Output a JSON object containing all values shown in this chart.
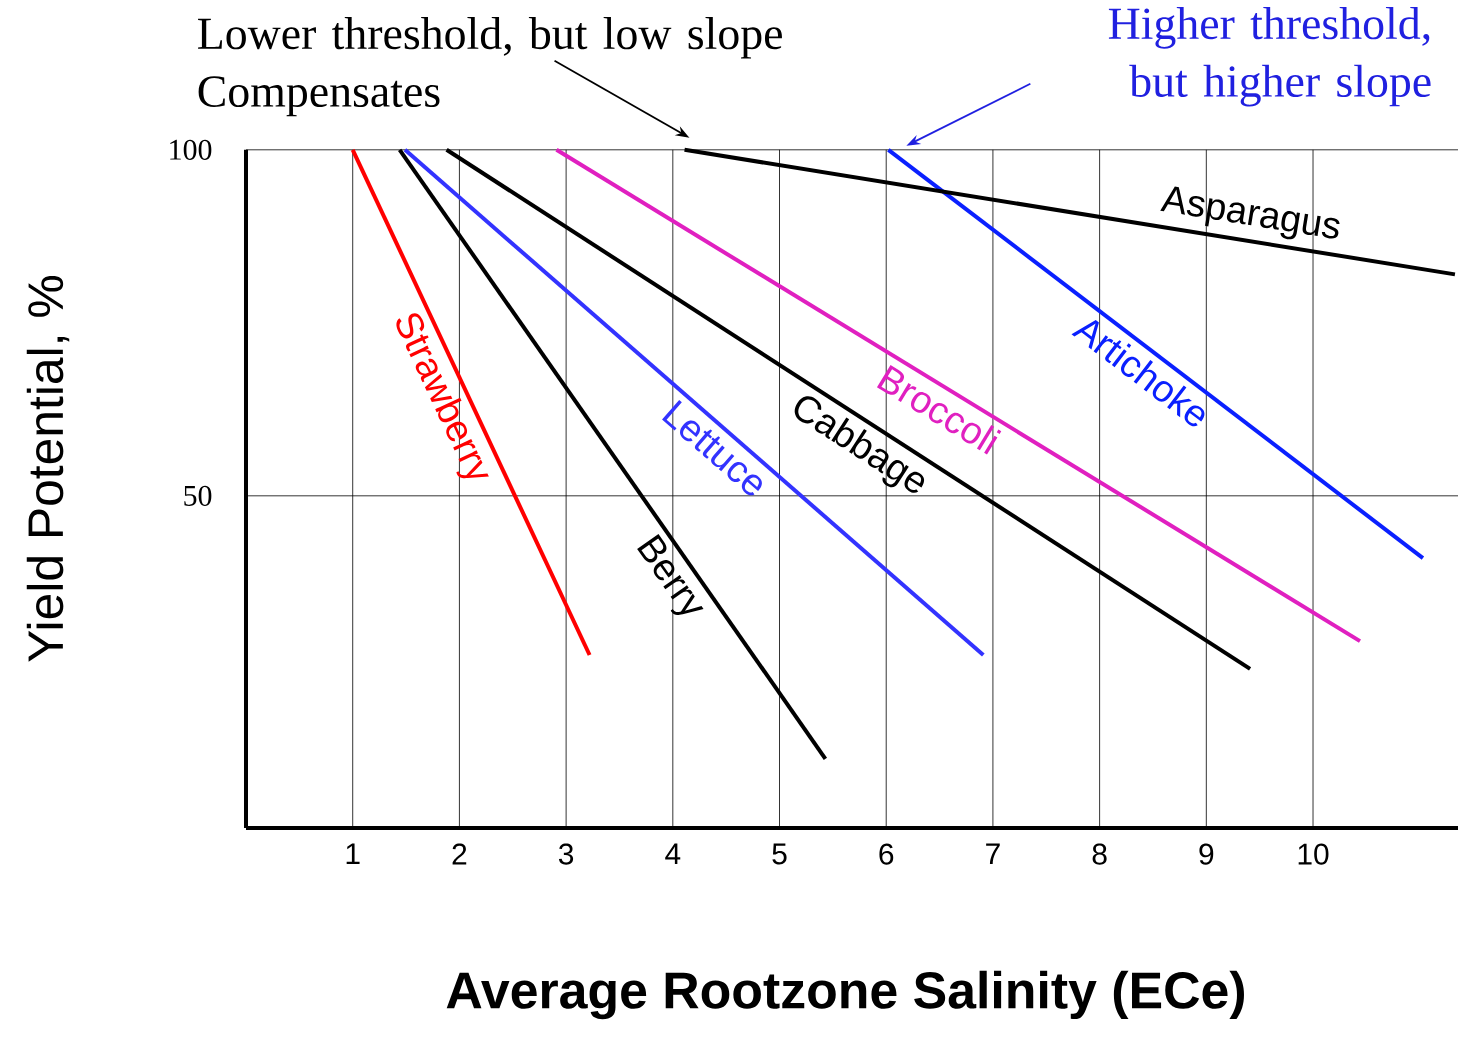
{
  "chart_data": {
    "type": "line",
    "xlabel": "Average Rootzone Salinity (ECe)",
    "ylabel": "Yield Potential, %",
    "xlim": [
      0,
      11.36
    ],
    "ylim": [
      2,
      100
    ],
    "xticks": [
      1,
      2,
      3,
      4,
      5,
      6,
      7,
      8,
      9,
      10
    ],
    "yticks": [
      50,
      100
    ],
    "grid": true,
    "line_style": "solid",
    "marker": "none",
    "series": [
      {
        "name": "Strawberry",
        "color": "#ff0000",
        "x": [
          1.0,
          3.22
        ],
        "values": [
          100,
          27
        ]
      },
      {
        "name": "Berry",
        "color": "#000000",
        "x": [
          1.44,
          5.43
        ],
        "values": [
          100,
          12
        ]
      },
      {
        "name": "Lettuce",
        "color": "#3333ff",
        "x": [
          1.49,
          6.91
        ],
        "values": [
          100,
          27
        ]
      },
      {
        "name": "Cabbage",
        "color": "#000000",
        "x": [
          1.88,
          9.41
        ],
        "values": [
          100,
          25
        ]
      },
      {
        "name": "Broccoli",
        "color": "#e020c0",
        "x": [
          2.91,
          10.44
        ],
        "values": [
          100,
          29
        ]
      },
      {
        "name": "Artichoke",
        "color": "#0a20ff",
        "x": [
          6.02,
          11.03
        ],
        "values": [
          100,
          41
        ]
      },
      {
        "name": "Asparagus",
        "color": "#000000",
        "x": [
          4.11,
          11.33
        ],
        "values": [
          100,
          82
        ]
      }
    ],
    "annotations": [
      "Lower threshold,   but low slope Compensates",
      "Higher threshold, but higher slope"
    ]
  }
}
